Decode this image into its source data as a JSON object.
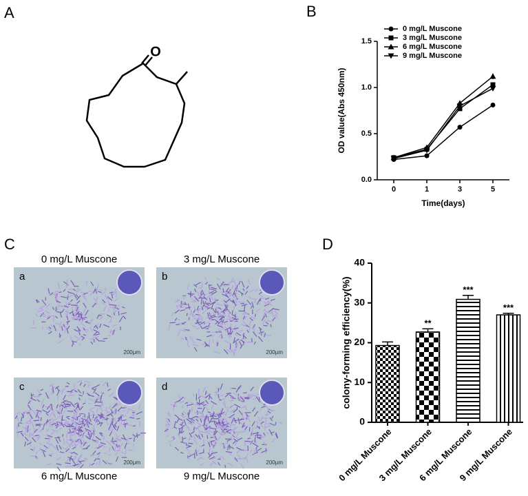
{
  "panel_labels": [
    "A",
    "B",
    "C",
    "D"
  ],
  "structure": {
    "atom_label": "O"
  },
  "chart_data": [
    {
      "type": "line",
      "x_label": "Time(days)",
      "y_label": "OD value(Abs 450nm)",
      "categories": [
        "0",
        "1",
        "3",
        "5"
      ],
      "ylim": [
        0,
        1.5
      ],
      "yticks": [
        {
          "value": 0,
          "label": "0.0"
        },
        {
          "value": 0.5,
          "label": "0.5"
        },
        {
          "value": 1,
          "label": "1.0"
        },
        {
          "value": 1.5,
          "label": "1.5"
        }
      ],
      "series": [
        {
          "name": "0 mg/L Muscone",
          "color": "#000000",
          "marker": "circle",
          "values": [
            0.22,
            0.26,
            0.57,
            0.81
          ],
          "errors": [
            0.01,
            0.01,
            0.02,
            0.01
          ]
        },
        {
          "name": "3 mg/L Muscone",
          "color": "#000000",
          "marker": "square",
          "values": [
            0.24,
            0.33,
            0.77,
            1.03
          ],
          "errors": [
            0.01,
            0.01,
            0.02,
            0.02
          ]
        },
        {
          "name": "6 mg/L Muscone",
          "color": "#000000",
          "marker": "triangle-up",
          "values": [
            0.24,
            0.35,
            0.83,
            1.12
          ],
          "errors": [
            0.01,
            0.01,
            0.02,
            0.03
          ]
        },
        {
          "name": "9 mg/L Muscone",
          "color": "#000000",
          "marker": "triangle-down",
          "values": [
            0.23,
            0.32,
            0.8,
            0.99
          ],
          "errors": [
            0.01,
            0.01,
            0.02,
            0.02
          ]
        }
      ]
    },
    {
      "type": "bar",
      "y_label": "colony-forming efficiency(%)",
      "categories": [
        "0 mg/L Muscone",
        "3 mg/L Muscone",
        "6 mg/L Muscone",
        "9 mg/L Muscone"
      ],
      "values": [
        19.3,
        22.7,
        30.9,
        27.0
      ],
      "errors": [
        0.9,
        0.8,
        1.0,
        0.4
      ],
      "annotations": [
        null,
        "**",
        "***",
        "***"
      ],
      "patterns": [
        "checker-small",
        "checker-large",
        "hlines",
        "vlines"
      ],
      "color": "#000000",
      "ylim": [
        0,
        40
      ],
      "yticks": [
        0,
        10,
        20,
        30,
        40
      ]
    }
  ],
  "micrographs": [
    {
      "caption": "0 mg/L Muscone",
      "letter": "a",
      "scale": "200μm",
      "density": 0.6
    },
    {
      "caption": "3 mg/L Muscone",
      "letter": "b",
      "scale": "200μm",
      "density": 1
    },
    {
      "caption": "6 mg/L Muscone",
      "letter": "c",
      "scale": "200μm",
      "density": 1.5
    },
    {
      "caption": "9 mg/L Muscone",
      "letter": "d",
      "scale": "200μm",
      "density": 1.2
    }
  ]
}
